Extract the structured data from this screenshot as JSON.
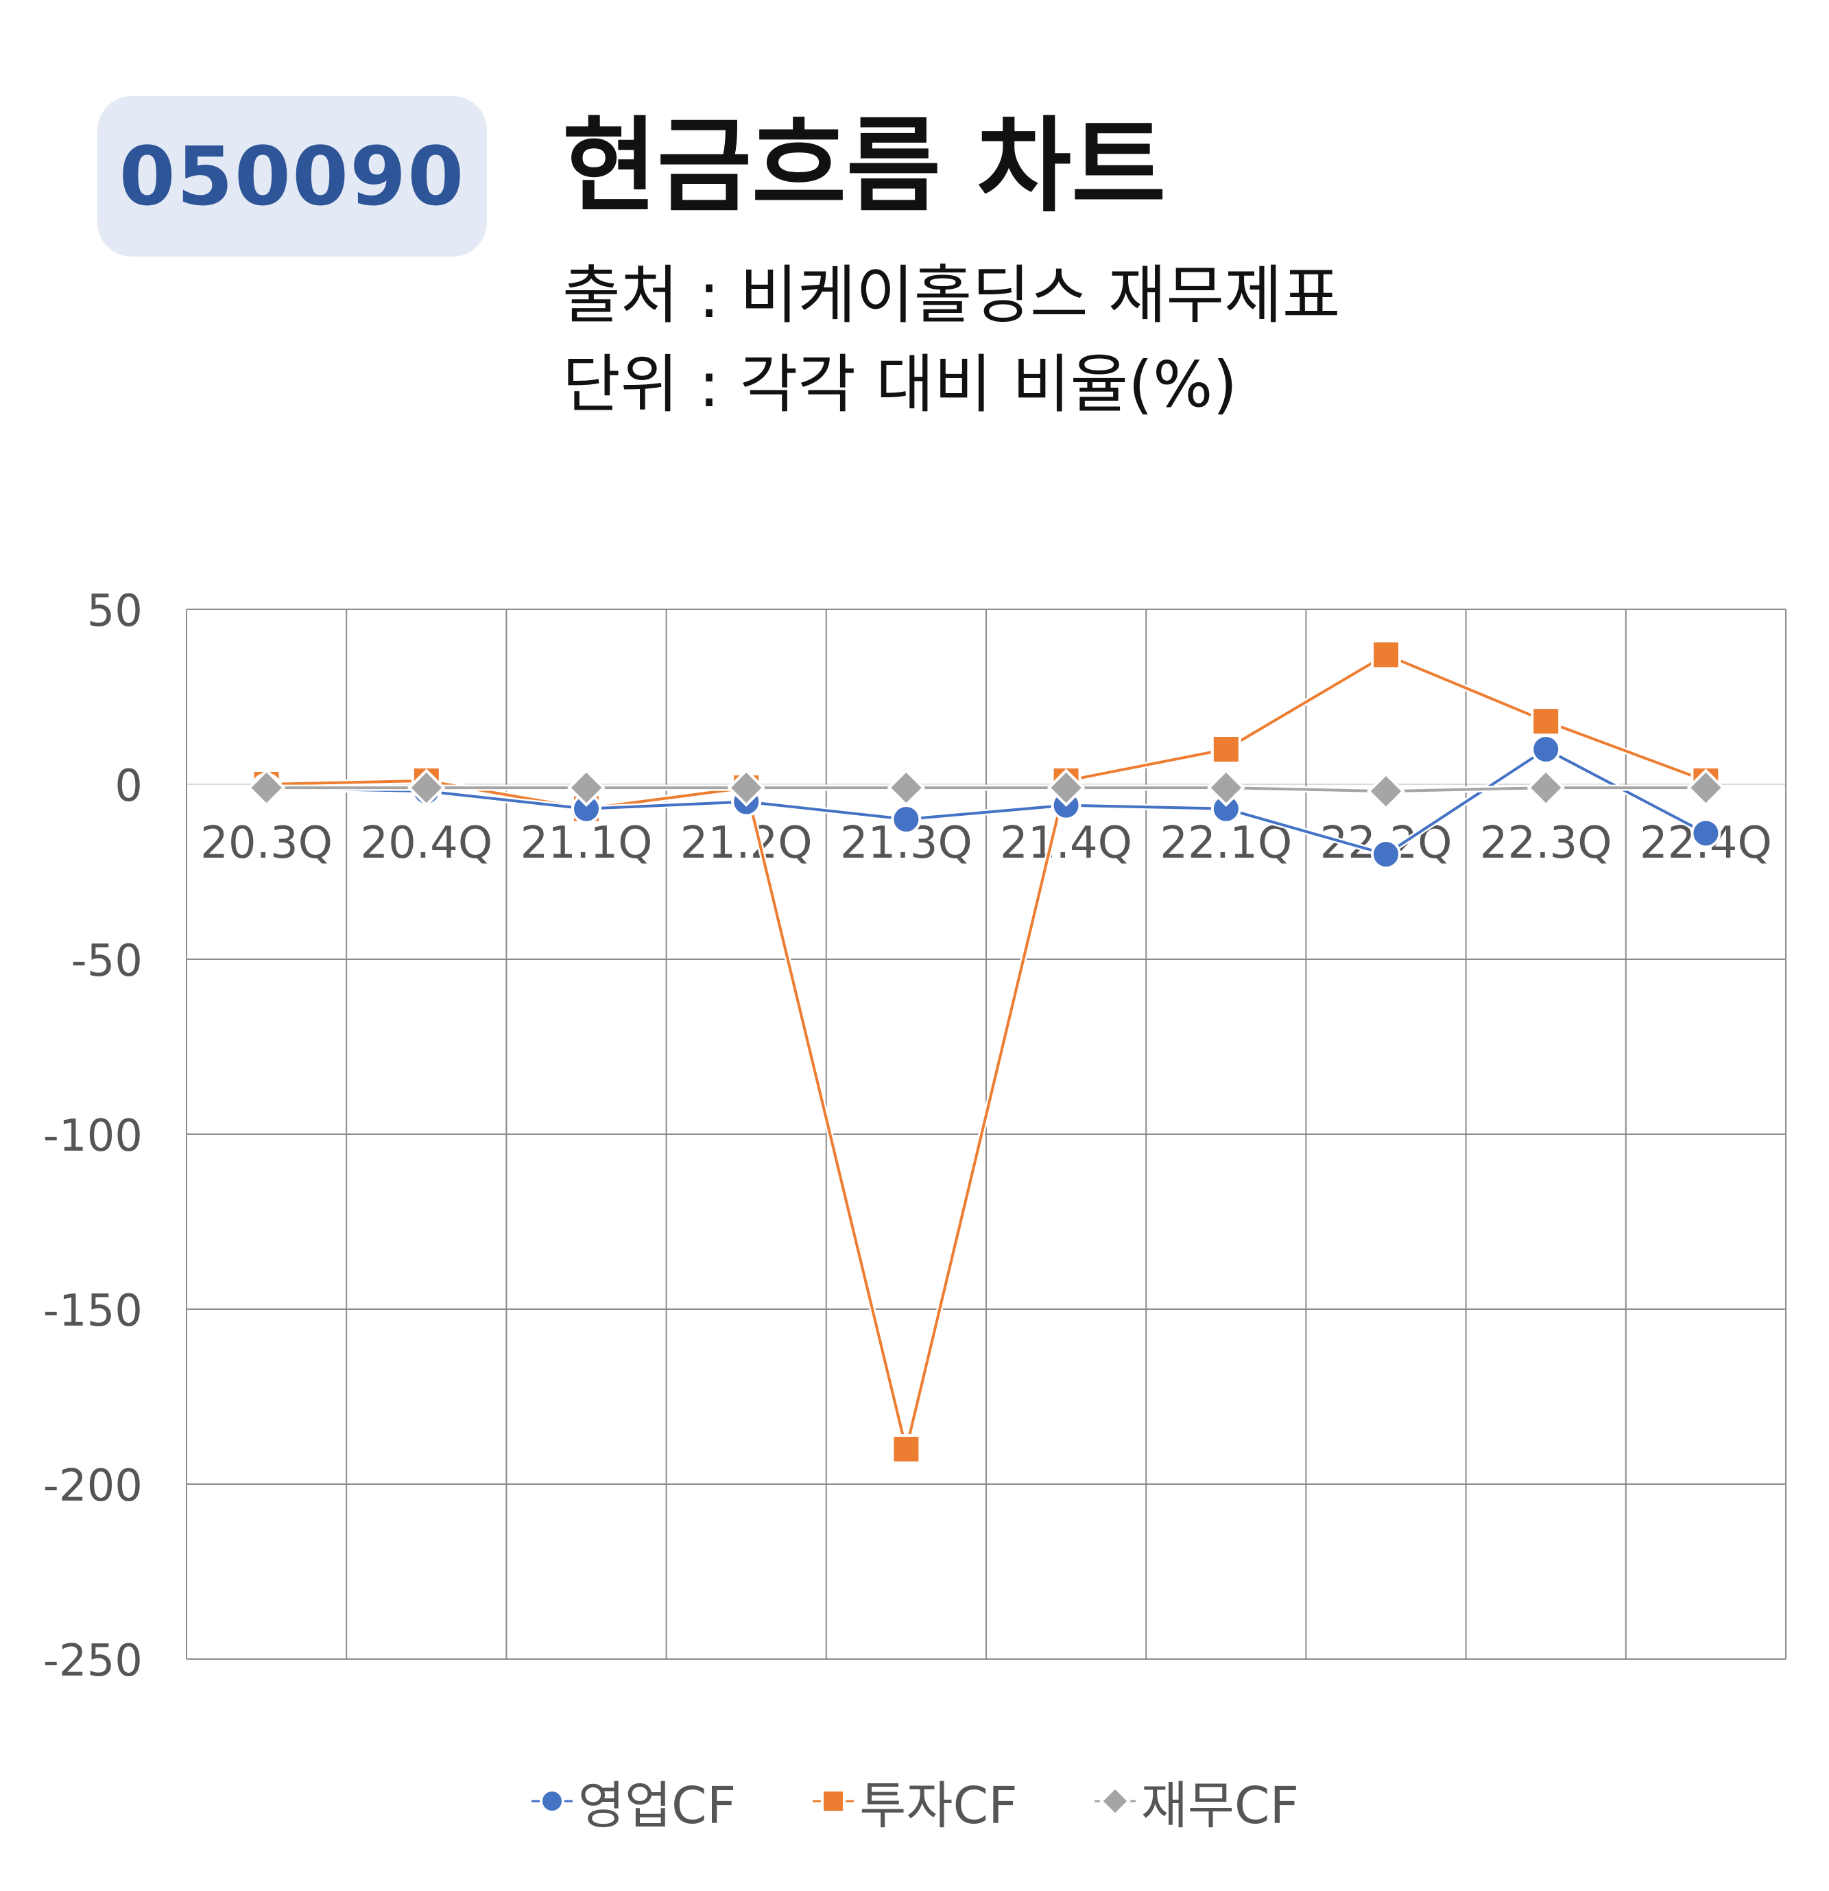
{
  "header": {
    "ticker": "050090",
    "title": "현금흐름 차트",
    "source": "출처 : 비케이홀딩스 재무제표",
    "unit": "단위 : 각각 대비 비율(%)"
  },
  "chart_data": {
    "type": "line",
    "categories": [
      "20.3Q",
      "20.4Q",
      "21.1Q",
      "21.2Q",
      "21.3Q",
      "21.4Q",
      "22.1Q",
      "22.2Q",
      "22.3Q",
      "22.4Q"
    ],
    "ylim": [
      -250,
      50
    ],
    "yticks": [
      50,
      0,
      -50,
      -100,
      -150,
      -200,
      -250
    ],
    "grid": true,
    "legend_position": "bottom",
    "series": [
      {
        "name": "영업CF",
        "marker": "circle",
        "color": "#4472c4",
        "values": [
          -1,
          -2,
          -7,
          -5,
          -10,
          -6,
          -7,
          -20,
          10,
          -14
        ]
      },
      {
        "name": "투자CF",
        "marker": "square",
        "color": "#ed7d31",
        "values": [
          0,
          1,
          -7,
          -1,
          -190,
          1,
          10,
          37,
          18,
          1
        ]
      },
      {
        "name": "재무CF",
        "marker": "diamond",
        "color": "#a5a5a5",
        "values": [
          -1,
          -1,
          -1,
          -1,
          -1,
          -1,
          -1,
          -2,
          -1,
          -1
        ]
      }
    ]
  }
}
